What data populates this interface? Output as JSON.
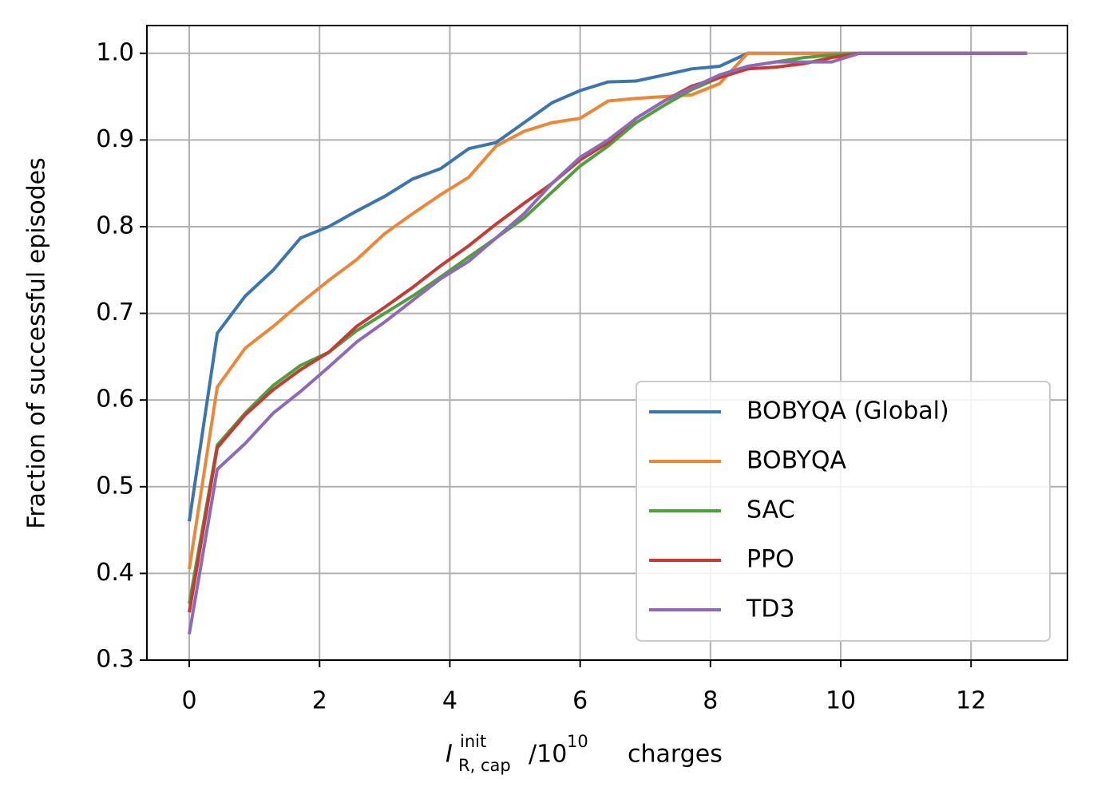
{
  "chart_data": {
    "type": "line",
    "ylabel": "Fraction of successful episodes",
    "xlabel_parts": [
      "I",
      "init",
      "R, cap",
      "/10",
      "10",
      "charges"
    ],
    "x": [
      0,
      0.43,
      0.86,
      1.29,
      1.71,
      2.14,
      2.57,
      3.0,
      3.43,
      3.86,
      4.29,
      4.71,
      5.14,
      5.57,
      6.0,
      6.43,
      6.86,
      7.29,
      7.71,
      8.14,
      8.57,
      9.0,
      9.43,
      9.86,
      10.29,
      10.71,
      11.14,
      11.57,
      12.0,
      12.43,
      12.86
    ],
    "series": [
      {
        "name": "BOBYQA (Global)",
        "color": "#3b75af",
        "values": [
          0.46,
          0.677,
          0.72,
          0.75,
          0.787,
          0.8,
          0.818,
          0.835,
          0.855,
          0.867,
          0.89,
          0.897,
          0.92,
          0.943,
          0.957,
          0.967,
          0.968,
          0.975,
          0.982,
          0.985,
          1.0,
          1.0,
          1.0,
          1.0,
          1.0,
          1.0,
          1.0,
          1.0,
          1.0,
          1.0,
          1.0
        ]
      },
      {
        "name": "BOBYQA",
        "color": "#ef8636",
        "values": [
          0.405,
          0.615,
          0.66,
          0.685,
          0.712,
          0.738,
          0.762,
          0.792,
          0.815,
          0.837,
          0.857,
          0.893,
          0.91,
          0.92,
          0.925,
          0.945,
          0.948,
          0.95,
          0.952,
          0.965,
          1.0,
          1.0,
          1.0,
          1.0,
          1.0,
          1.0,
          1.0,
          1.0,
          1.0,
          1.0,
          1.0
        ]
      },
      {
        "name": "SAC",
        "color": "#519e3e",
        "values": [
          0.365,
          0.548,
          0.585,
          0.617,
          0.64,
          0.655,
          0.68,
          0.7,
          0.72,
          0.742,
          0.765,
          0.787,
          0.81,
          0.84,
          0.87,
          0.893,
          0.92,
          0.94,
          0.958,
          0.972,
          0.985,
          0.99,
          0.995,
          0.998,
          1.0,
          1.0,
          1.0,
          1.0,
          1.0,
          1.0,
          1.0
        ]
      },
      {
        "name": "PPO",
        "color": "#c53a32",
        "values": [
          0.355,
          0.545,
          0.583,
          0.612,
          0.635,
          0.655,
          0.685,
          0.707,
          0.73,
          0.755,
          0.778,
          0.803,
          0.827,
          0.85,
          0.877,
          0.897,
          0.925,
          0.945,
          0.962,
          0.972,
          0.982,
          0.984,
          0.988,
          0.995,
          1.0,
          1.0,
          1.0,
          1.0,
          1.0,
          1.0,
          1.0
        ]
      },
      {
        "name": "TD3",
        "color": "#8d69b8",
        "values": [
          0.33,
          0.52,
          0.55,
          0.585,
          0.61,
          0.638,
          0.667,
          0.69,
          0.715,
          0.74,
          0.76,
          0.787,
          0.815,
          0.85,
          0.88,
          0.9,
          0.925,
          0.945,
          0.96,
          0.975,
          0.985,
          0.99,
          0.99,
          0.99,
          1.0,
          1.0,
          1.0,
          1.0,
          1.0,
          1.0,
          1.0
        ]
      }
    ],
    "xlim": [
      -0.65,
      13.48
    ],
    "xticks": [
      0,
      2,
      4,
      6,
      8,
      10,
      12
    ],
    "ylim": [
      0.3,
      1.032
    ],
    "yticks": [
      0.3,
      0.4,
      0.5,
      0.6,
      0.7,
      0.8,
      0.9,
      {
        "value": 1,
        "label": "1.0"
      }
    ],
    "grid": true,
    "legend": "lower right"
  }
}
